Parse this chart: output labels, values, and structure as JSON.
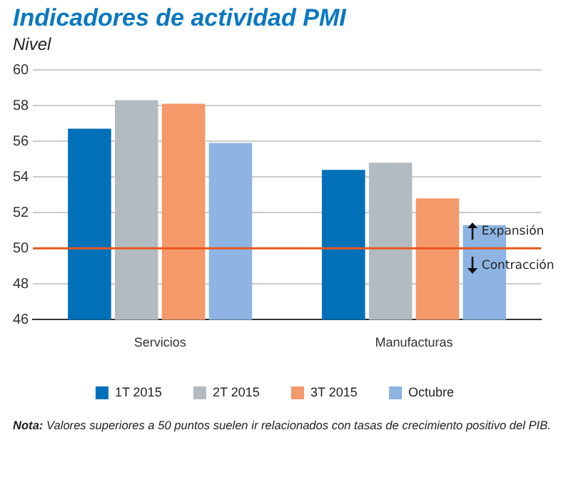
{
  "chart_data": {
    "type": "bar",
    "title": "Indicadores de actividad PMI",
    "ylabel": "Nivel",
    "categories": [
      "Servicios",
      "Manufacturas"
    ],
    "series": [
      {
        "name": "1T 2015",
        "color": "#0070b8",
        "values": [
          56.7,
          54.4
        ]
      },
      {
        "name": "2T 2015",
        "color": "#b2bcc0",
        "values": [
          58.3,
          54.8
        ]
      },
      {
        "name": "3T 2015",
        "color": "#f4996a",
        "values": [
          58.1,
          52.8
        ]
      },
      {
        "name": "Octubre",
        "color": "#8db4e2",
        "values": [
          55.9,
          51.3
        ]
      }
    ],
    "ylim": [
      46,
      60
    ],
    "yticks": [
      46,
      48,
      50,
      52,
      54,
      56,
      58,
      60
    ],
    "grid": "y",
    "legend": "bottom",
    "ref_lines": [
      {
        "axis": "y",
        "value": 50,
        "color": "#e8561e"
      }
    ],
    "annotations": [
      "Expansión",
      "Contracción",
      "Nota: Valores superiores a 50 puntos suelen ir relacionados con tasas de crecimiento positivo del PIB."
    ]
  }
}
